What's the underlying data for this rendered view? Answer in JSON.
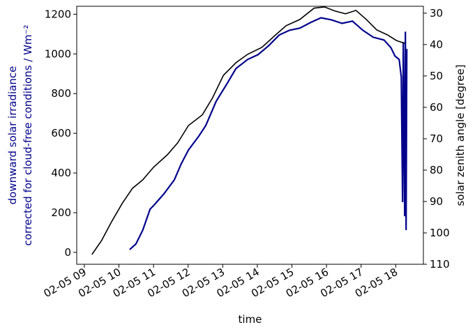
{
  "chart_data": {
    "type": "line",
    "xlabel": "time",
    "ylabel": [
      "downward solar irradiance",
      "corrected for cloud-free conditions / Wm⁻²"
    ],
    "ylabel_color": "#00008b",
    "y2label": "solar zenith angle [degree]",
    "xlim": [
      8.78,
      18.8
    ],
    "xticks": [
      {
        "value": 9,
        "label": "02-05 09"
      },
      {
        "value": 10,
        "label": "02-05 10"
      },
      {
        "value": 11,
        "label": "02-05 11"
      },
      {
        "value": 12,
        "label": "02-05 12"
      },
      {
        "value": 13,
        "label": "02-05 13"
      },
      {
        "value": 14,
        "label": "02-05 14"
      },
      {
        "value": 15,
        "label": "02-05 15"
      },
      {
        "value": 16,
        "label": "02-05 16"
      },
      {
        "value": 17,
        "label": "02-05 17"
      },
      {
        "value": 18,
        "label": "02-05 18"
      }
    ],
    "ylim": [
      -60,
      1240
    ],
    "yticks": [
      0,
      200,
      400,
      600,
      800,
      1000,
      1200
    ],
    "y2lim": [
      110,
      27.8
    ],
    "y2ticks": [
      30,
      40,
      50,
      60,
      70,
      80,
      90,
      100,
      110
    ],
    "series": [
      {
        "name": "downward solar irradiance",
        "color": "#00008b",
        "x": [
          10.31,
          10.49,
          10.69,
          10.9,
          11.0,
          11.3,
          11.6,
          11.8,
          12.01,
          12.31,
          12.51,
          12.81,
          13.12,
          13.38,
          13.72,
          14.02,
          14.33,
          14.63,
          14.93,
          15.23,
          15.54,
          15.84,
          16.14,
          16.45,
          16.75,
          17.05,
          17.35,
          17.66,
          17.86,
          17.98,
          18.1,
          18.16,
          18.2,
          18.22,
          18.26,
          18.28,
          18.3,
          18.32
        ],
        "values": [
          14,
          42,
          112,
          218,
          235,
          295,
          365,
          446,
          516,
          586,
          639,
          761,
          849,
          926,
          972,
          996,
          1042,
          1095,
          1119,
          1130,
          1158,
          1182,
          1172,
          1154,
          1165,
          1119,
          1084,
          1070,
          1032,
          989,
          972,
          884,
          253,
          1060,
          182,
          1112,
          112,
          1025
        ]
      },
      {
        "name": "solar zenith angle",
        "color": "#000000",
        "axis": "y2",
        "x": [
          9.22,
          9.5,
          9.79,
          10.09,
          10.39,
          10.69,
          11.0,
          11.4,
          11.7,
          12.01,
          12.41,
          12.71,
          13.02,
          13.38,
          13.72,
          14.13,
          14.53,
          14.83,
          15.23,
          15.64,
          15.94,
          16.24,
          16.55,
          16.85,
          17.15,
          17.45,
          17.76,
          18.02,
          18.26
        ],
        "values": [
          106.9,
          102.4,
          96.4,
          90.7,
          85.8,
          83.1,
          79.1,
          75.1,
          71.3,
          65.8,
          62.4,
          56.9,
          49.8,
          45.8,
          43.1,
          40.9,
          36.9,
          34.0,
          32.0,
          28.4,
          28.0,
          29.3,
          30.2,
          29.1,
          32.0,
          35.3,
          36.9,
          38.7,
          39.6
        ]
      }
    ]
  }
}
